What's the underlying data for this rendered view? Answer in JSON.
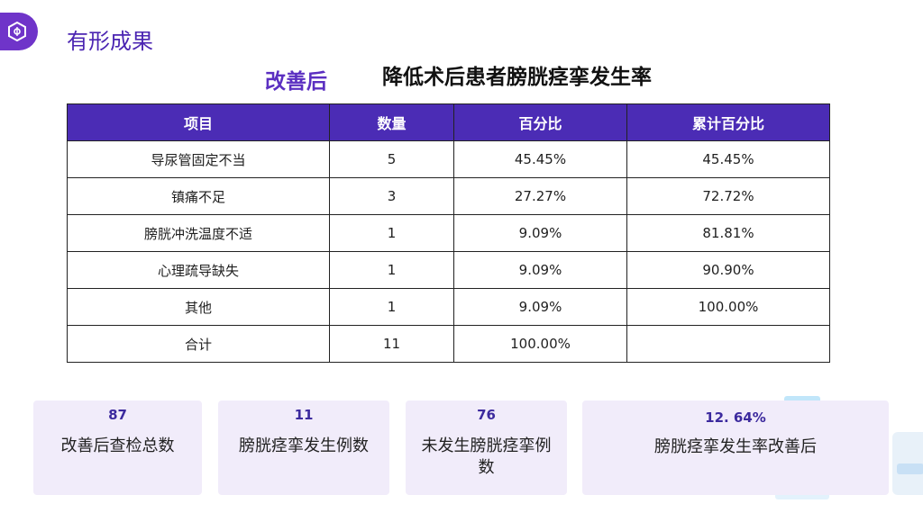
{
  "header": {
    "title": "有形成果",
    "subtitle_left": "改善后",
    "subtitle_right": "降低术后患者膀胱痉挛发生率"
  },
  "table": {
    "headers": [
      "项目",
      "数量",
      "百分比",
      "累计百分比"
    ],
    "rows": [
      [
        "导尿管固定不当",
        "5",
        "45.45%",
        "45.45%"
      ],
      [
        "镇痛不足",
        "3",
        "27.27%",
        "72.72%"
      ],
      [
        "膀胱冲洗温度不适",
        "1",
        "9.09%",
        "81.81%"
      ],
      [
        "心理疏导缺失",
        "1",
        "9.09%",
        "90.90%"
      ],
      [
        "其他",
        "1",
        "9.09%",
        "100.00%"
      ],
      [
        "合计",
        "11",
        "100.00%",
        ""
      ]
    ]
  },
  "stats": [
    {
      "value": "87",
      "label": "改善后查检总数"
    },
    {
      "value": "11",
      "label": "膀胱痉挛发生例数"
    },
    {
      "value": "76",
      "label": "未发生膀胱痉挛例数"
    },
    {
      "value": "12. 64%",
      "label": "膀胱痉挛发生率改善后"
    }
  ],
  "colors": {
    "accent": "#4b2cb5",
    "brand": "#6f34c9",
    "card_bg": "#f1ecfa"
  }
}
